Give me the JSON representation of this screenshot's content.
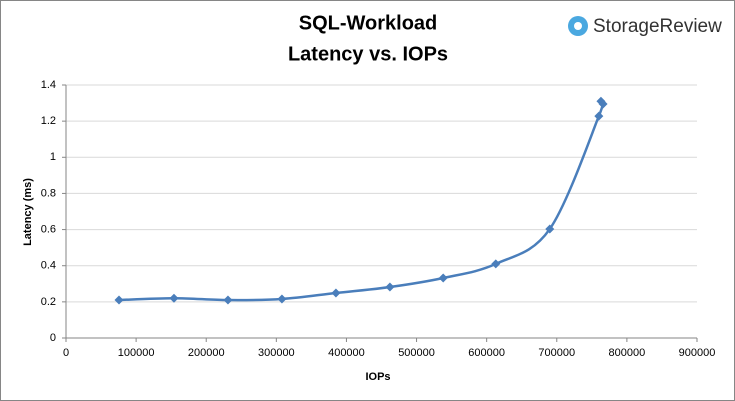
{
  "chart_data": {
    "type": "line",
    "title": "SQL-Workload",
    "subtitle": "Latency vs. IOPs",
    "brand": "StorageReview",
    "x_label": "IOPs",
    "y_label": "Latency (ms)",
    "x": [
      75600,
      154000,
      231000,
      308000,
      385000,
      462000,
      538000,
      613000,
      690000,
      760000,
      763000,
      766000
    ],
    "series": [
      {
        "name": "Latency",
        "color": "#4a7ebb",
        "values": [
          0.21,
          0.22,
          0.21,
          0.216,
          0.249,
          0.282,
          0.332,
          0.41,
          0.603,
          1.228,
          1.31,
          1.295
        ]
      }
    ],
    "xlim": [
      0,
      900000
    ],
    "xticks": [
      0,
      100000,
      200000,
      300000,
      400000,
      500000,
      600000,
      700000,
      800000,
      900000
    ],
    "ylim": [
      0,
      1.4
    ],
    "yticks": [
      0,
      0.2,
      0.4,
      0.6,
      0.8,
      1,
      1.2,
      1.4
    ],
    "grid": true,
    "legend": false
  }
}
